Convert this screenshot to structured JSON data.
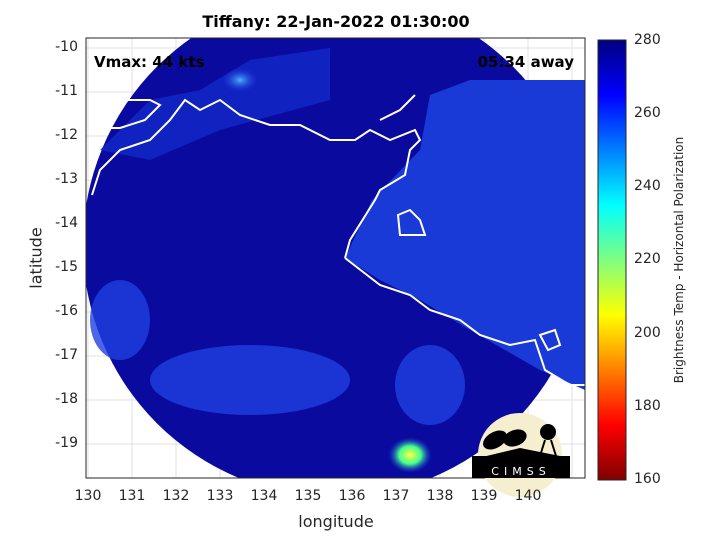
{
  "title": "Tiffany: 22-Jan-2022 01:30:00",
  "annotations": {
    "vmax": "Vmax: 44 kts",
    "time_away": "05:34 away"
  },
  "x_axis": {
    "label": "longitude",
    "ticks": [
      "130",
      "131",
      "132",
      "133",
      "134",
      "135",
      "136",
      "137",
      "138",
      "139",
      "140"
    ],
    "range": [
      130,
      141.3
    ]
  },
  "y_axis": {
    "label": "latitude",
    "ticks": [
      "-10",
      "-11",
      "-12",
      "-13",
      "-14",
      "-15",
      "-16",
      "-17",
      "-18",
      "-19"
    ],
    "range": [
      -19.8,
      -9.8
    ]
  },
  "colorbar": {
    "label": "Brightness Temp - Horizontal Polarization",
    "ticks": [
      "280",
      "260",
      "240",
      "220",
      "200",
      "180",
      "160"
    ],
    "range": [
      160,
      280
    ],
    "colormap": "jet"
  },
  "logo": "CIMSS",
  "colors": {
    "background_field": "#0a0a96",
    "land": "#1a3ad8",
    "coastline": "#ffffff"
  }
}
